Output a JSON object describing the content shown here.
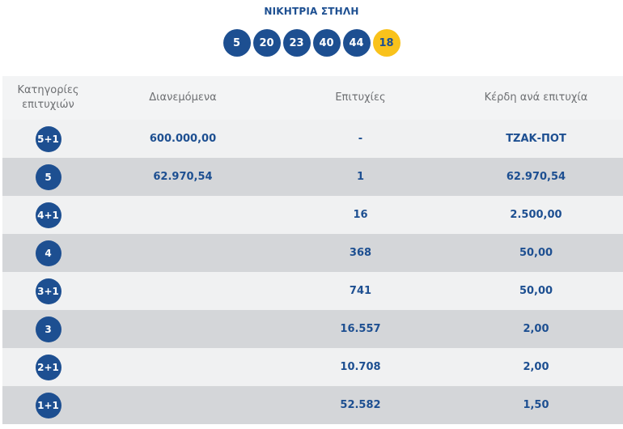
{
  "winning_column": {
    "title": "ΝΙΚΗΤΡΙΑ ΣΤΗΛΗ",
    "numbers": [
      "5",
      "20",
      "23",
      "40",
      "44"
    ],
    "joker": "18"
  },
  "table": {
    "headers": {
      "category": "Κατηγορίες επιτυχιών",
      "distributed": "Διανεμόμενα",
      "winners": "Επιτυχίες",
      "prize": "Κέρδη ανά επιτυχία"
    },
    "rows": [
      {
        "category": "5+1",
        "distributed": "600.000,00",
        "winners": "-",
        "prize": "ΤΖΑΚ-ΠΟΤ"
      },
      {
        "category": "5",
        "distributed": "62.970,54",
        "winners": "1",
        "prize": "62.970,54"
      },
      {
        "category": "4+1",
        "distributed": "",
        "winners": "16",
        "prize": "2.500,00"
      },
      {
        "category": "4",
        "distributed": "",
        "winners": "368",
        "prize": "50,00"
      },
      {
        "category": "3+1",
        "distributed": "",
        "winners": "741",
        "prize": "50,00"
      },
      {
        "category": "3",
        "distributed": "",
        "winners": "16.557",
        "prize": "2,00"
      },
      {
        "category": "2+1",
        "distributed": "",
        "winners": "10.708",
        "prize": "2,00"
      },
      {
        "category": "1+1",
        "distributed": "",
        "winners": "52.582",
        "prize": "1,50"
      }
    ]
  },
  "colors": {
    "primary": "#1d4f91",
    "joker": "#f9c21b",
    "row_light": "#f0f1f2",
    "row_dark": "#d4d6d9"
  }
}
